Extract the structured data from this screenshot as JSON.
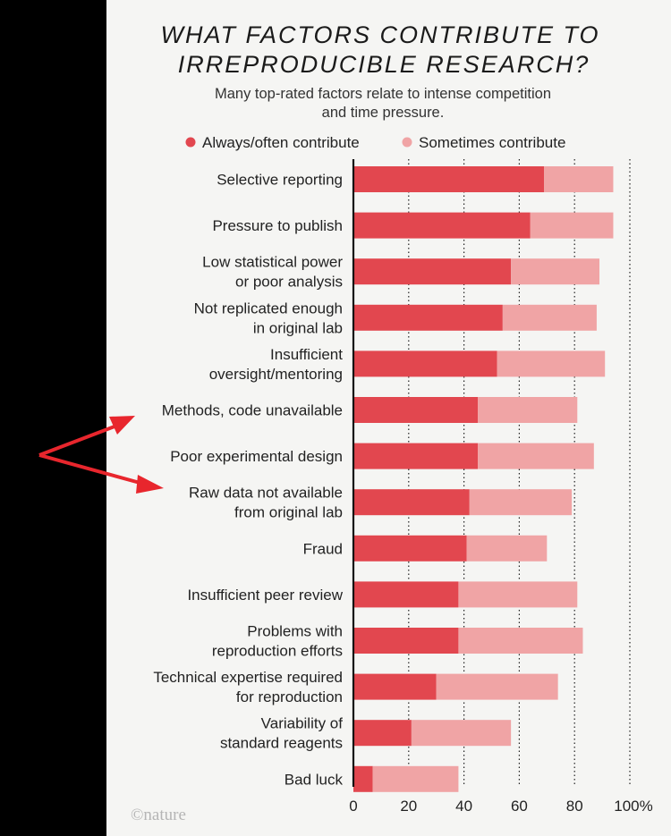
{
  "title_lines": [
    "WHAT FACTORS CONTRIBUTE TO",
    "IRREPRODUCIBLE RESEARCH?"
  ],
  "subtitle_lines": [
    "Many top-rated factors relate to intense competition",
    "and time pressure."
  ],
  "credit": "©nature",
  "colors": {
    "always": "#e2474f",
    "sometimes": "#f0a4a5",
    "arrow": "#e8262d",
    "panel": "#f5f5f3",
    "outer": "#000000"
  },
  "chart_data": {
    "type": "bar",
    "orientation": "horizontal",
    "stacked": true,
    "title": "WHAT FACTORS CONTRIBUTE TO IRREPRODUCIBLE RESEARCH?",
    "subtitle": "Many top-rated factors relate to intense competition and time pressure.",
    "categories": [
      [
        "Selective reporting"
      ],
      [
        "Pressure to publish"
      ],
      [
        "Low statistical power",
        "or poor analysis"
      ],
      [
        "Not replicated enough",
        "in original lab"
      ],
      [
        "Insufficient",
        "oversight/mentoring"
      ],
      [
        "Methods, code unavailable"
      ],
      [
        "Poor experimental design"
      ],
      [
        "Raw data not available",
        "from original lab"
      ],
      [
        "Fraud"
      ],
      [
        "Insufficient peer review"
      ],
      [
        "Problems with",
        "reproduction efforts"
      ],
      [
        "Technical expertise required",
        "for reproduction"
      ],
      [
        "Variability of",
        "standard reagents"
      ],
      [
        "Bad luck"
      ]
    ],
    "series": [
      {
        "name": "Always/often contribute",
        "values": [
          69,
          64,
          57,
          54,
          52,
          45,
          45,
          42,
          41,
          38,
          38,
          30,
          21,
          7
        ]
      },
      {
        "name": "Sometimes contribute",
        "values": [
          25,
          30,
          32,
          34,
          39,
          36,
          42,
          37,
          29,
          43,
          45,
          44,
          36,
          31
        ]
      }
    ],
    "xlim": [
      0,
      100
    ],
    "xticks": [
      "0",
      "20",
      "40",
      "60",
      "80",
      "100%"
    ],
    "grid": "dotted vertical lines at 20, 40, 60, 80, 100",
    "legend_placement": "top",
    "annotations": [
      "red arrows pointing at Methods, code unavailable and Raw data not available from original lab"
    ]
  }
}
